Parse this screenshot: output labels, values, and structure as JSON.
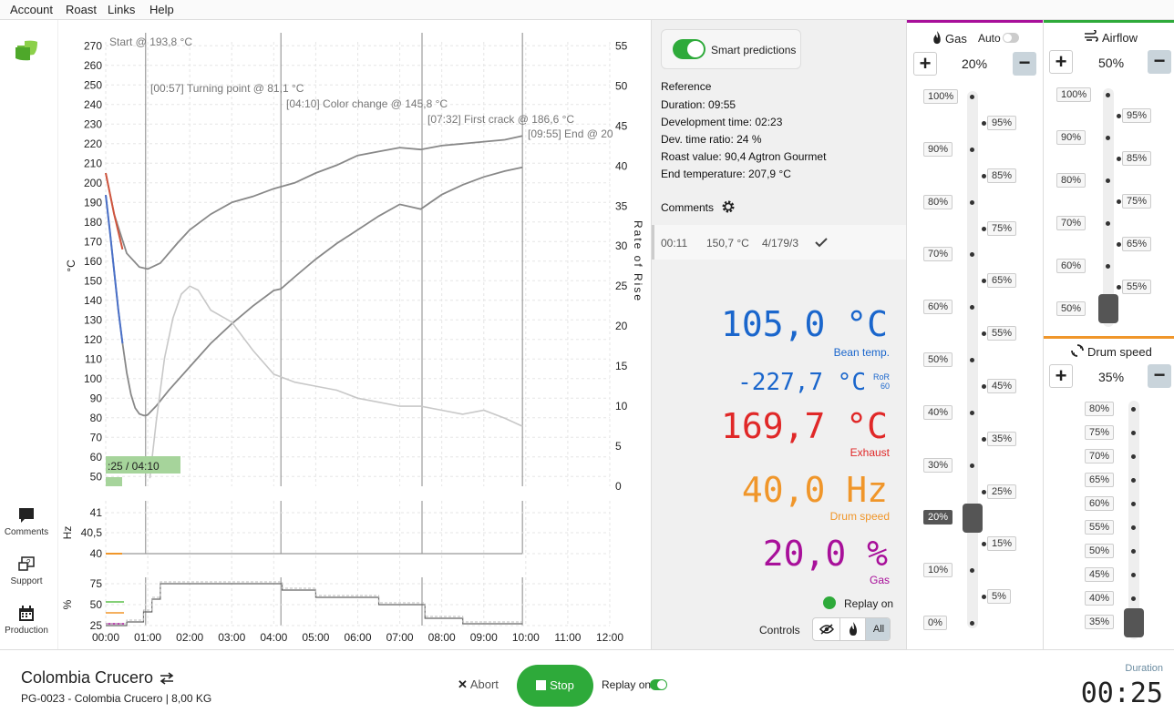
{
  "menu": {
    "account": "Account",
    "roast": "Roast",
    "links": "Links",
    "help": "Help"
  },
  "nav": {
    "comments": "Comments",
    "support": "Support",
    "production": "Production"
  },
  "chart": {
    "y_left_label": "°C",
    "y_right_label": "Rate of Rise",
    "y_left_ticks": [
      "270",
      "260",
      "250",
      "240",
      "230",
      "220",
      "210",
      "200",
      "190",
      "180",
      "170",
      "160",
      "150",
      "140",
      "130",
      "120",
      "110",
      "100",
      "90",
      "80",
      "70",
      "60",
      "50"
    ],
    "y_right_ticks": [
      "55",
      "50",
      "45",
      "40",
      "35",
      "30",
      "25",
      "20",
      "15",
      "10",
      "5",
      "0"
    ],
    "x_ticks": [
      "00:00",
      "01:00",
      "02:00",
      "03:00",
      "04:00",
      "05:00",
      "06:00",
      "07:00",
      "08:00",
      "09:00",
      "10:00",
      "11:00",
      "12:00"
    ],
    "events": [
      "Start @ 193,8 °C",
      "[00:57] Turning point @ 81,1 °C",
      "[04:10] Color change @ 145,8 °C",
      "[07:32] First crack @ 186,6 °C",
      "[09:55] End @ 20"
    ],
    "phase_label": ":25 / 04:10",
    "hz_label": "Hz",
    "hz_ticks": [
      "41",
      "40,5",
      "40"
    ],
    "pct_label": "%",
    "pct_ticks": [
      "75",
      "50",
      "25"
    ]
  },
  "chart_data": {
    "type": "line",
    "xlabel": "",
    "ylabel": "°C",
    "y2label": "Rate of Rise",
    "xlim_min": [
      0,
      12
    ],
    "ylim": [
      45,
      272
    ],
    "y2lim": [
      0,
      55.5
    ],
    "events_min": [
      0.95,
      4.17,
      7.53,
      9.92
    ],
    "series": [
      {
        "axis": "left",
        "color": "#888888",
        "x": [
          0,
          0.1,
          0.2,
          0.3,
          0.4,
          0.5,
          0.6,
          0.7,
          0.8,
          0.9,
          0.95,
          1.0,
          1.2,
          1.5,
          2.0,
          2.5,
          3.0,
          3.5,
          4.0,
          4.17,
          4.5,
          5.0,
          5.5,
          6.0,
          6.5,
          7.0,
          7.5,
          8.0,
          8.5,
          9.0,
          9.5,
          9.92
        ],
        "y": [
          193.8,
          175,
          155,
          135,
          118,
          103,
          92,
          85,
          82,
          81.2,
          81.1,
          81.5,
          86,
          94,
          106,
          118,
          128,
          137,
          145,
          145.8,
          152,
          161,
          169,
          176,
          183,
          189,
          186.6,
          194,
          199,
          203,
          206,
          207.9
        ]
      },
      {
        "axis": "left",
        "color": "#888888",
        "x": [
          0,
          0.2,
          0.5,
          0.8,
          1.0,
          1.3,
          1.7,
          2.0,
          2.5,
          3.0,
          3.5,
          4.0,
          4.5,
          5.0,
          5.5,
          6.0,
          6.5,
          7.0,
          7.5,
          8.0,
          8.5,
          9.0,
          9.5,
          9.92
        ],
        "y": [
          205,
          184,
          164,
          157,
          156,
          159,
          169,
          176,
          184,
          190,
          193,
          197,
          200,
          205,
          209,
          214,
          216,
          218,
          217,
          219,
          220,
          221,
          222,
          224
        ]
      },
      {
        "axis": "right",
        "color": "#c8c8c8",
        "x": [
          1.05,
          1.2,
          1.4,
          1.6,
          1.8,
          2.0,
          2.2,
          2.5,
          3.0,
          3.5,
          4.0,
          4.5,
          5.0,
          5.5,
          6.0,
          6.5,
          7.0,
          7.5,
          8.0,
          8.5,
          9.0,
          9.5,
          9.92
        ],
        "y": [
          1,
          8,
          16,
          21,
          24,
          25,
          24.5,
          22,
          20.5,
          17,
          14,
          13,
          12.5,
          12,
          11,
          10.5,
          10,
          10,
          9.5,
          9,
          9.5,
          8.5,
          7.5
        ]
      }
    ]
  },
  "info": {
    "smart_predictions": "Smart predictions",
    "reference_title": "Reference",
    "duration": "Duration: 09:55",
    "dev_time": "Development time: 02:23",
    "dev_ratio": "Dev. time ratio: 24 %",
    "roast_value": "Roast value: 90,4 Agtron Gourmet",
    "end_temp": "End temperature: 207,9 °C",
    "comments_title": "Comments",
    "comment_row": {
      "time": "00:11",
      "temp": "150,7 °C",
      "settings": "4/179/3"
    },
    "bean_temp": "105,0 °C",
    "bean_temp_label": "Bean temp.",
    "ror": "-227,7 °C",
    "ror_label1": "RoR",
    "ror_label2": "60",
    "exhaust": "169,7 °C",
    "exhaust_label": "Exhaust",
    "drum": "40,0 Hz",
    "drum_label": "Drum speed",
    "gas": "20,0 %",
    "gas_label": "Gas",
    "replay": "Replay on",
    "controls": "Controls",
    "all": "All"
  },
  "gas": {
    "title": "Gas",
    "auto": "Auto",
    "value": "20%",
    "ticks_left": [
      "100%",
      "90%",
      "80%",
      "70%",
      "60%",
      "50%",
      "40%",
      "30%",
      "20%",
      "10%",
      "0%"
    ],
    "ticks_right": [
      "95%",
      "85%",
      "75%",
      "65%",
      "55%",
      "45%",
      "35%",
      "25%",
      "15%",
      "5%"
    ]
  },
  "airflow": {
    "title": "Airflow",
    "value": "50%",
    "ticks_left": [
      "100%",
      "90%",
      "80%",
      "70%",
      "60%",
      "50%"
    ],
    "ticks_right": [
      "95%",
      "85%",
      "75%",
      "65%",
      "55%"
    ]
  },
  "drum": {
    "title": "Drum speed",
    "value": "35%",
    "ticks": [
      "80%",
      "75%",
      "70%",
      "65%",
      "60%",
      "55%",
      "50%",
      "45%",
      "40%",
      "35%"
    ]
  },
  "bottom": {
    "title": "Colombia Crucero",
    "subtitle": "PG-0023 - Colombia Crucero | 8,00 KG",
    "abort": "Abort",
    "stop": "Stop",
    "replay": "Replay on",
    "duration_label": "Duration",
    "duration": "00:25"
  },
  "colors": {
    "green": "#2eaa3a",
    "blue": "#1a66cc",
    "red": "#e02828",
    "orange": "#f0962a",
    "purple": "#a8109a"
  }
}
